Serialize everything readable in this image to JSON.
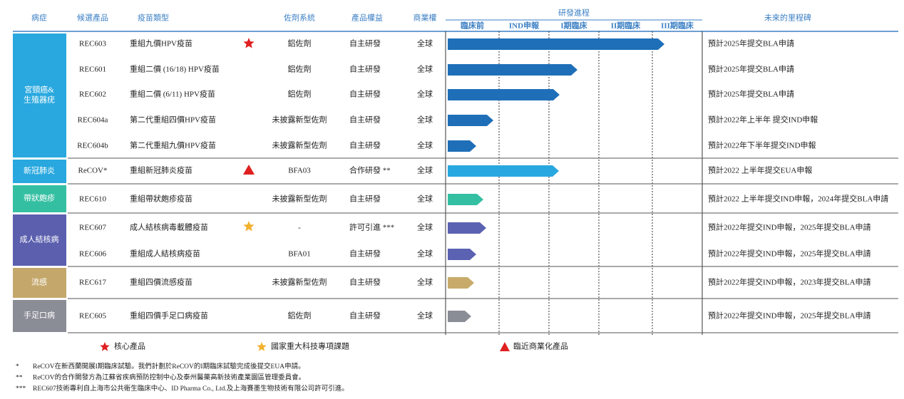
{
  "header": {
    "columns": [
      "病症",
      "候選產品",
      "疫苗類型",
      "佐劑系統",
      "產品權益",
      "商業權",
      "研發進程",
      "未來的里程碑"
    ],
    "stages": [
      "臨床前",
      "IND申報",
      "I期臨床",
      "II期臨床",
      "III期臨床"
    ]
  },
  "groups": [
    {
      "label": [
        "宮頸癌&",
        "生殖器疣"
      ],
      "rows": [
        {
          "product": "REC603",
          "vaccine": "重組九價HPV疫苗",
          "adjuvant": "鋁佐劑",
          "rights": "自主研發",
          "commercial": "全球",
          "milestone": "預計2025年提交BLA申請"
        },
        {
          "product": "REC601",
          "vaccine": "重組二價 (16/18) HPV疫苗",
          "adjuvant": "鋁佐劑",
          "rights": "自主研發",
          "commercial": "全球",
          "milestone": "預計2025年提交BLA申請"
        },
        {
          "product": "REC602",
          "vaccine": "重組二價 (6/11) HPV疫苗",
          "adjuvant": "鋁佐劑",
          "rights": "自主研發",
          "commercial": "全球",
          "milestone": "預計2025年提交BLA申請"
        },
        {
          "product": "REC604a",
          "vaccine": "第二代重組四價HPV疫苗",
          "adjuvant": "未披露新型佐劑",
          "rights": "自主研發",
          "commercial": "全球",
          "milestone": "預計2022年上半年 提交IND申報"
        },
        {
          "product": "REC604b",
          "vaccine": "第二代重組九價HPV疫苗",
          "adjuvant": "未披露新型佐劑",
          "rights": "自主研發",
          "commercial": "全球",
          "milestone": "預計2022年下半年提交IND申報"
        }
      ]
    },
    {
      "label": [
        "新冠肺炎"
      ],
      "rows": [
        {
          "product": "ReCOV*",
          "vaccine": "重組新冠肺炎疫苗",
          "adjuvant": "BFA03",
          "rights": "合作研發 **",
          "commercial": "全球",
          "milestone": "預計2022 上半年提交EUA申報"
        }
      ]
    },
    {
      "label": [
        "帶狀皰疹"
      ],
      "rows": [
        {
          "product": "REC610",
          "vaccine": "重組帶狀皰疹疫苗",
          "adjuvant": "未披露新型佐劑",
          "rights": "自主研發",
          "commercial": "全球",
          "milestone": "預計2022 上半年提交IND申報，2024年提交BLA申請"
        }
      ]
    },
    {
      "label": [
        "成人結核病"
      ],
      "rows": [
        {
          "product": "REC607",
          "vaccine": "成人結核病毒載體疫苗",
          "adjuvant": "-",
          "rights": "許可引進 ***",
          "commercial": "全球",
          "milestone": "預計2022年提交IND申報，2025年提交BLA申請"
        },
        {
          "product": "REC606",
          "vaccine": "重組成人結核病疫苗",
          "adjuvant": "BFA01",
          "rights": "自主研發",
          "commercial": "全球",
          "milestone": "預計2022年提交IND申報，2025年提交BLA申請"
        }
      ]
    },
    {
      "label": [
        "流感"
      ],
      "rows": [
        {
          "product": "REC617",
          "vaccine": "重組四價流感疫苗",
          "adjuvant": "未披露新型佐劑",
          "rights": "自主研發",
          "commercial": "全球",
          "milestone": "預計2022年提交IND申報，2023年提交BLA申請"
        }
      ]
    },
    {
      "label": [
        "手足口病"
      ],
      "rows": [
        {
          "product": "REC605",
          "vaccine": "重組四價手足口病疫苗",
          "adjuvant": "鋁佐劑",
          "rights": "自主研發",
          "commercial": "全球",
          "milestone": "預計2022年提交IND申報，2025年提交BLA申請"
        }
      ]
    }
  ],
  "legend": [
    "核心產品",
    "國家重大科技專項課題",
    "臨近商業化產品"
  ],
  "footnotes": [
    {
      "marker": "*",
      "text": "ReCOV在新西蘭開展I期臨床試驗。我們計劃於ReCOV的I期臨床試驗完成後提交EUA申請。"
    },
    {
      "marker": "**",
      "text": "ReCOV的合作開發方為江蘇省疾病預防控制中心及泰州醫藥高新技術產業園區管理委員會。"
    },
    {
      "marker": "***",
      "text": "REC607技術專利自上海市公共衛生臨床中心、ID Pharma Co., Ltd.及上海賽墨生物技術有限公司許可引進。"
    }
  ]
}
